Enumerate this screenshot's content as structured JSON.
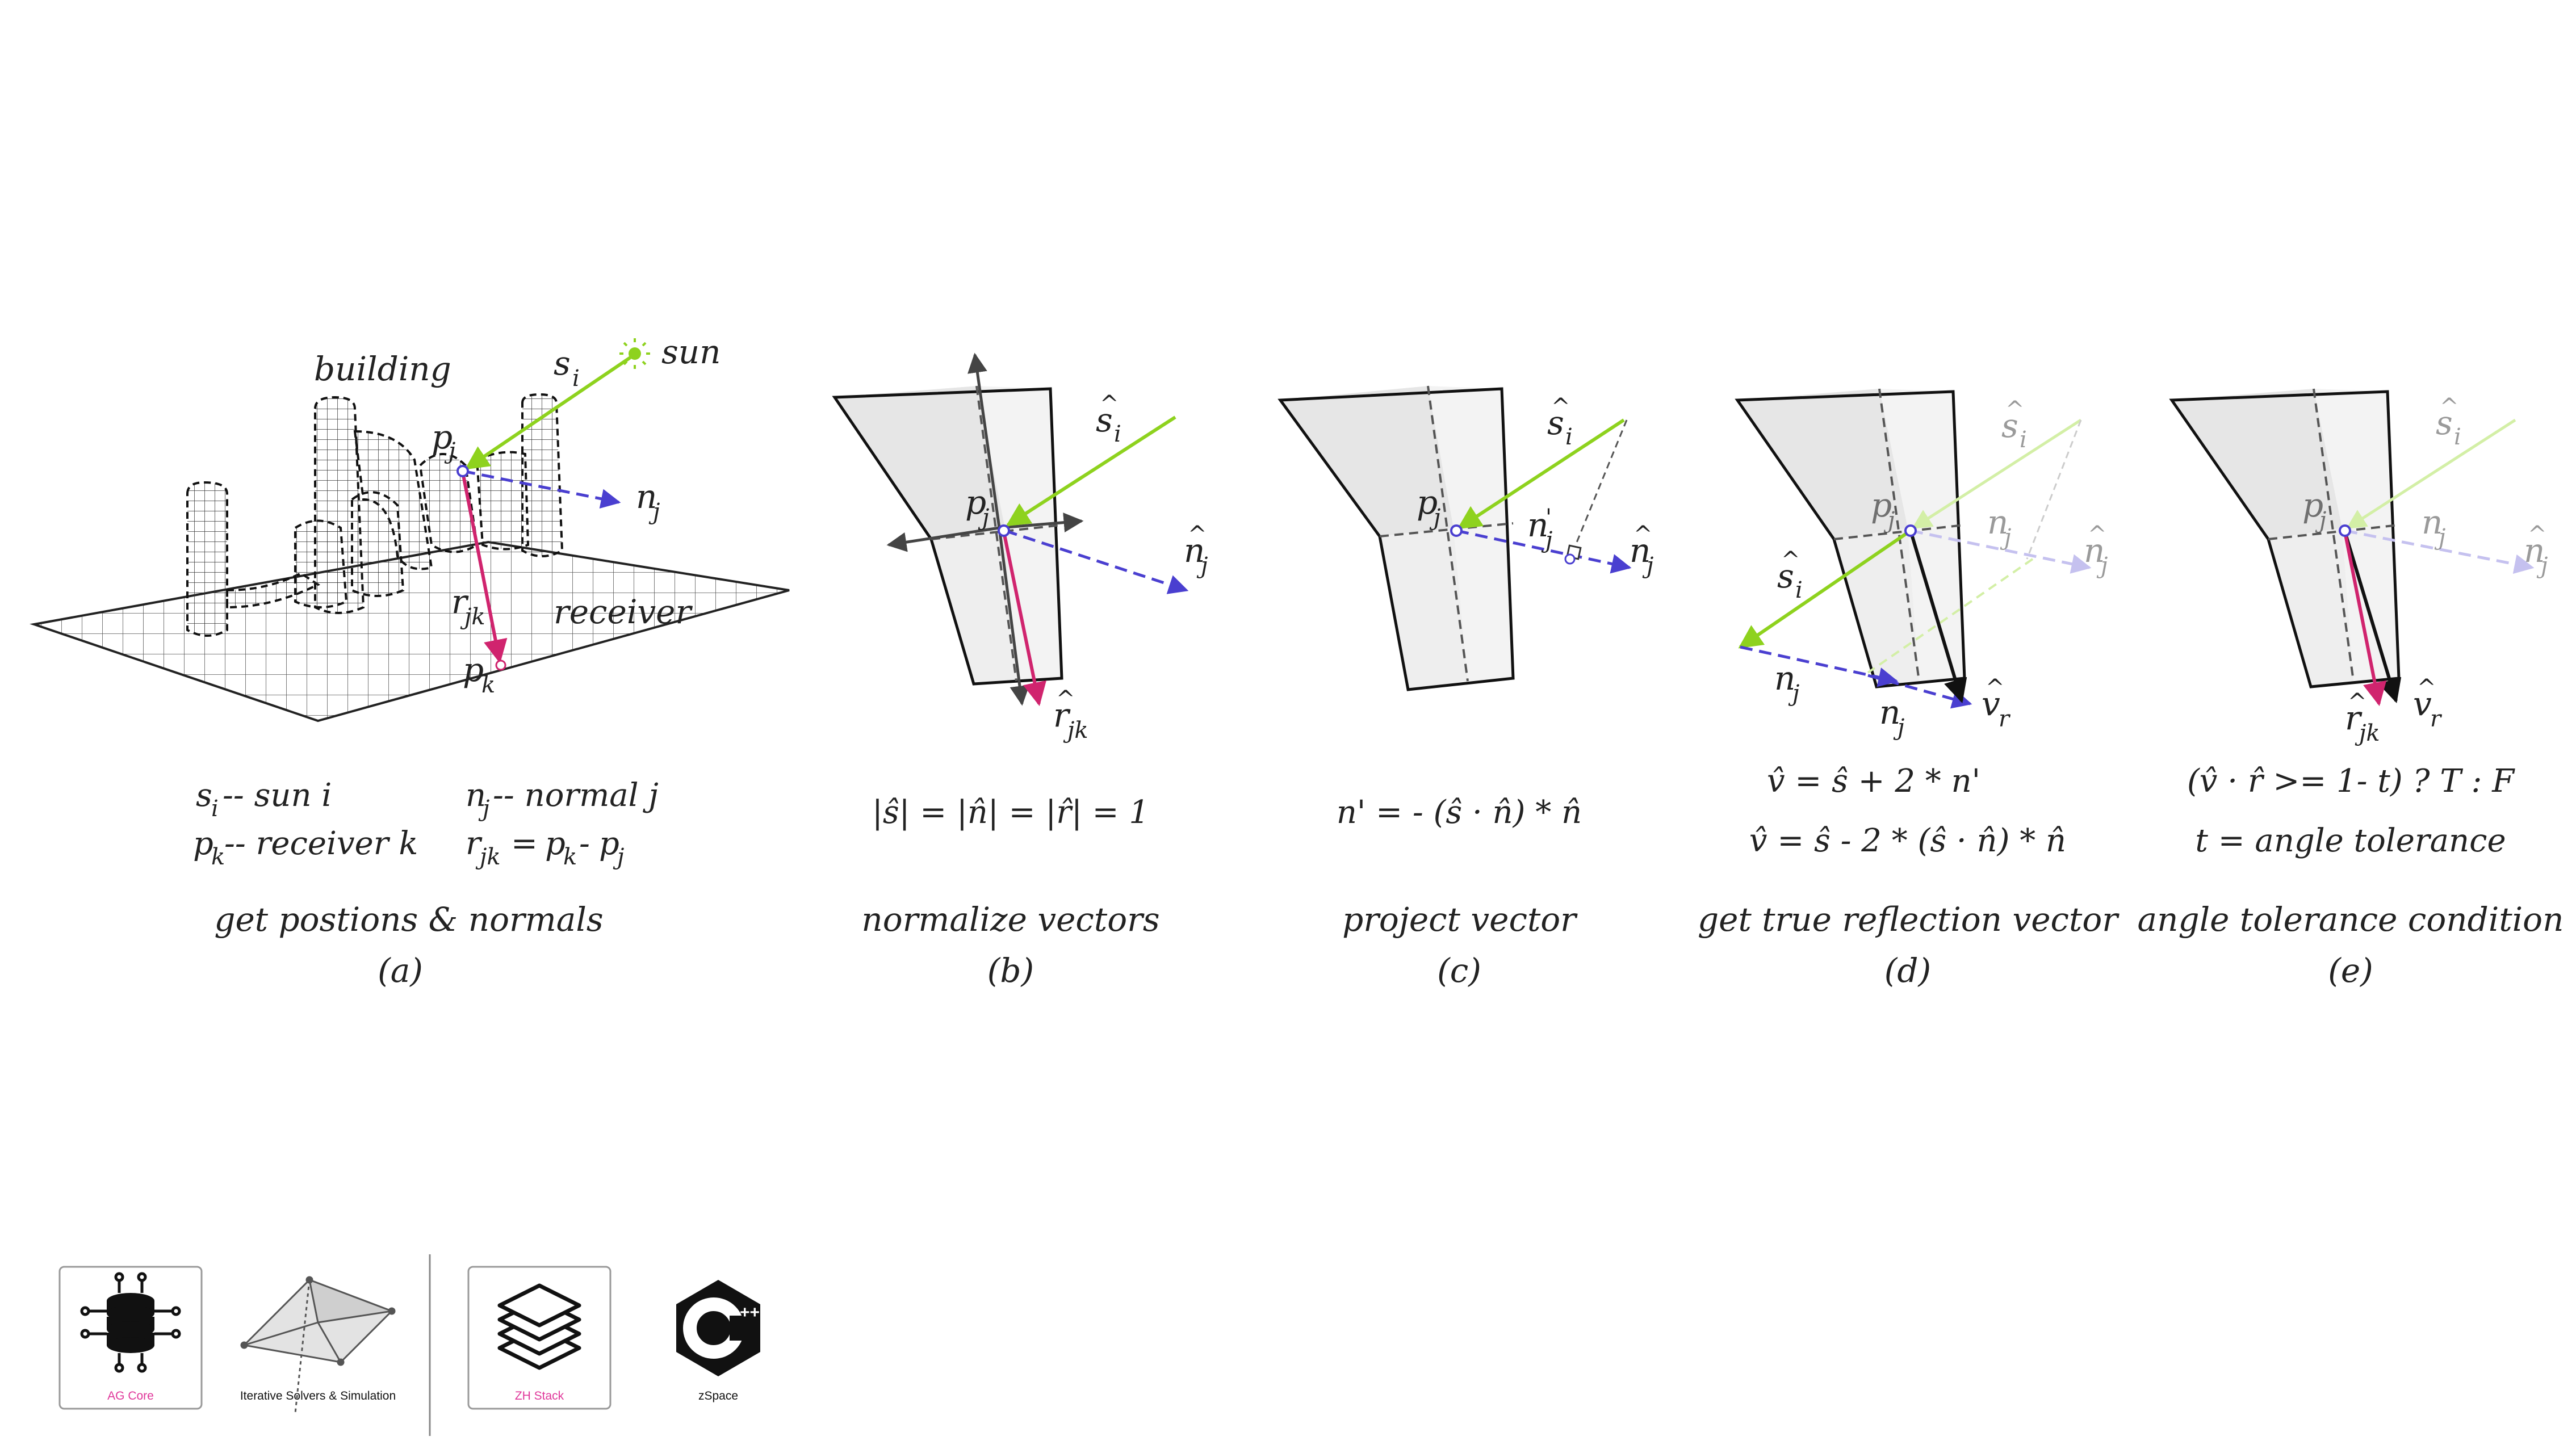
{
  "colors": {
    "sun_vector": "#8ed21e",
    "normal_vector": "#4a3fd0",
    "receiver_vector": "#d0246e",
    "reflection_vector": "#111111",
    "panel_fill_dark": "#e6e6e6",
    "panel_fill_light": "#f3f3f3",
    "logo_accent": "#e0379a"
  },
  "panel_a": {
    "labels": {
      "building": "building",
      "sun": "sun",
      "receiver": "receiver",
      "s_i": "s",
      "s_sub": "i",
      "p_j": "p",
      "p_sub": "j",
      "n_j": "n",
      "n_sub": "j",
      "r_jk": "r",
      "r_sub": "jk",
      "p_k": "p",
      "pk_sub": "k"
    },
    "legend": {
      "s_line": {
        "sym": "s",
        "sub": "i",
        "text": "-- sun i"
      },
      "n_line": {
        "sym": "n",
        "sub": "j",
        "text": "-- normal j"
      },
      "p_line": {
        "sym": "p",
        "sub": "k",
        "text": "-- receiver k"
      },
      "r_line": {
        "lhs": "r",
        "lhs_sub": "jk",
        "eq": "=",
        "a": "p",
        "a_sub": "k",
        "minus": "-",
        "b": "p",
        "b_sub": "j"
      }
    },
    "caption": "get postions & normals",
    "tag": "(a)"
  },
  "panel_b": {
    "labels": {
      "s": "s",
      "s_sub": "i",
      "p": "p",
      "p_sub": "j",
      "n": "n",
      "n_sub": "j",
      "r": "r",
      "r_sub": "jk"
    },
    "equation": "|ŝ| = |n̂| = |r̂| = 1",
    "caption": "normalize vectors",
    "tag": "(b)"
  },
  "panel_c": {
    "labels": {
      "s": "s",
      "s_sub": "i",
      "p": "p",
      "p_sub": "j",
      "np": "n",
      "np_sub": "j",
      "n": "n",
      "n_sub": "j"
    },
    "equation": "n' = - (ŝ · n̂) * n̂",
    "caption": "project vector",
    "tag": "(c)"
  },
  "panel_d": {
    "labels": {
      "s_top": "s",
      "s_top_sub": "i",
      "p": "p",
      "p_sub": "j",
      "np_top": "n",
      "np_top_sub": "j",
      "n_top": "n",
      "n_top_sub": "j",
      "s_left": "s",
      "s_left_sub": "i",
      "np_left": "n",
      "np_left_sub": "j",
      "np_bot": "n",
      "np_bot_sub": "j",
      "v": "v",
      "v_sub": "r"
    },
    "equation_1": "v̂ = ŝ + 2 * n'",
    "equation_2": "v̂ = ŝ - 2 * (ŝ · n̂) * n̂",
    "caption": "get true reflection vector",
    "tag": "(d)"
  },
  "panel_e": {
    "labels": {
      "s": "s",
      "s_sub": "i",
      "p": "p",
      "p_sub": "j",
      "np": "n",
      "np_sub": "j",
      "n": "n",
      "n_sub": "j",
      "r": "r",
      "r_sub": "jk",
      "v": "v",
      "v_sub": "r"
    },
    "equation_1": "(v̂ · r̂ >= 1- t) ? T : F",
    "equation_2": "t = angle tolerance",
    "caption": "angle tolerance condition",
    "tag": "(e)"
  },
  "logos": [
    {
      "label": "AG Core",
      "icon": "database-network-icon"
    },
    {
      "label": "Iterative Solvers & Simulation",
      "icon": "mesh-solver-icon"
    },
    {
      "label": "ZH Stack",
      "icon": "layers-stack-icon"
    },
    {
      "label": "zSpace",
      "icon": "cpp-logo-icon"
    }
  ]
}
